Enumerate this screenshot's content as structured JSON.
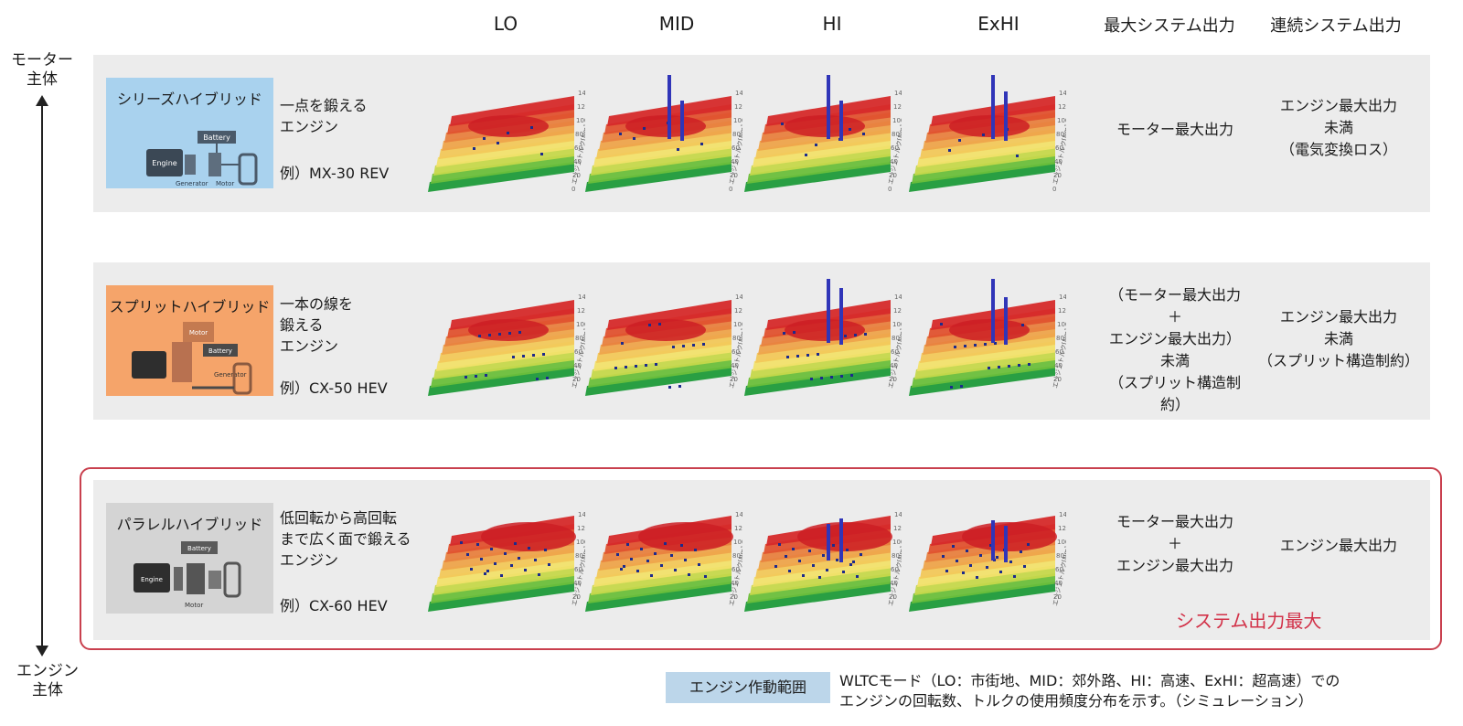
{
  "columns": [
    "LO",
    "MID",
    "HI",
    "ExHI",
    "最大システム出力",
    "連続システム出力"
  ],
  "axis": {
    "top": "モーター\n主体",
    "bottom": "エンジン\n主体"
  },
  "chart_labels": {
    "axis_title": "エンジントルク[Nm]"
  },
  "rows": [
    {
      "box_title": "シリーズハイブリッド",
      "box_color": "#a9d2ee",
      "desc": "一点を鍛える\nエンジン",
      "example": "例）MX-30 REV",
      "max_output": "モーター最大出力",
      "cont_output": "エンジン最大出力\n未満\n（電気変換ロス）",
      "ticks": [
        "140",
        "120",
        "100",
        "80",
        "60",
        "40",
        "20",
        "0"
      ],
      "diagram_labels": [
        "Battery",
        "Engine",
        "Generator",
        "Motor"
      ]
    },
    {
      "box_title": "スプリットハイブリッド",
      "box_color": "#f5a46a",
      "desc": "一本の線を\n鍛える\nエンジン",
      "example": "例）CX-50 HEV",
      "max_output": "（モーター最大出力\n＋\nエンジン最大出力）\n未満\n（スプリット構造制約）",
      "cont_output": "エンジン最大出力\n未満\n（スプリット構造制約）",
      "ticks": [
        "140",
        "120",
        "100",
        "80",
        "60",
        "40",
        "20"
      ],
      "diagram_labels": [
        "Motor",
        "Battery",
        "Generator"
      ]
    },
    {
      "box_title": "パラレルハイブリッド",
      "box_color": "#d4d4d4",
      "desc": "低回転から高回転\nまで広く面で鍛える\nエンジン",
      "example": "例）CX-60 HEV",
      "max_output": "モーター最大出力\n＋\nエンジン最大出力",
      "cont_output": "エンジン最大出力",
      "ticks": [
        "140",
        "120",
        "100",
        "80",
        "60",
        "40",
        "20"
      ],
      "diagram_labels": [
        "Battery",
        "Engine",
        "Motor"
      ]
    }
  ],
  "system_max_label": "システム出力最大",
  "legend": {
    "label": "エンジン作動範囲",
    "text1": "WLTCモード（LO：市街地、MID：郊外路、HI：高速、ExHI：超高速）での",
    "text2": "エンジンの回転数、トルクの使用頻度分布を示す。（シミュレーション）"
  }
}
